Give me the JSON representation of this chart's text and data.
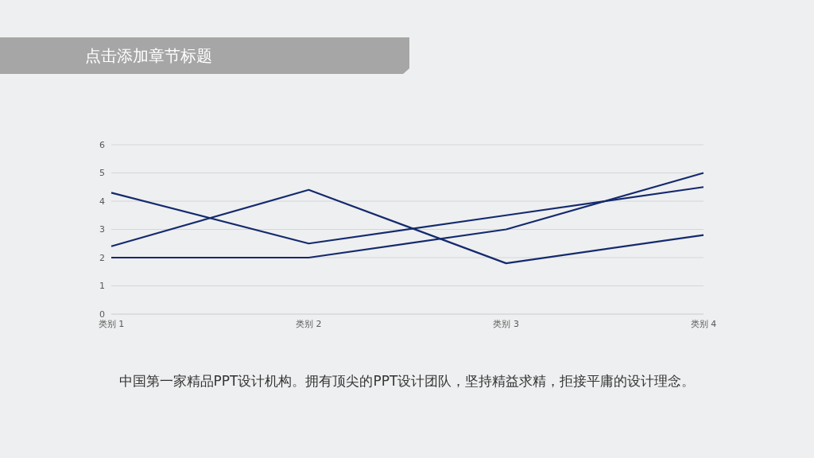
{
  "chart_data": {
    "type": "line",
    "title": "点击添加章节标题",
    "categories": [
      "类别 1",
      "类别 2",
      "类别 3",
      "类别 4"
    ],
    "series": [
      {
        "color": "#142a6e",
        "values": [
          4.3,
          2.5,
          3.5,
          4.5
        ]
      },
      {
        "color": "#142a6e",
        "values": [
          2.4,
          4.4,
          1.8,
          2.8
        ]
      },
      {
        "color": "#142a6e",
        "values": [
          2,
          2,
          3,
          5
        ]
      }
    ],
    "ylim": [
      0,
      6
    ],
    "yticks": [
      0,
      1,
      2,
      3,
      4,
      5,
      6
    ],
    "grid": "y",
    "marker": "none",
    "line_style": "solid",
    "annotations": [
      "中国第一家精品PPT设计机构。拥有顶尖的PPT设计团队，坚持精益求精，拒接平庸的设计理念。"
    ]
  }
}
